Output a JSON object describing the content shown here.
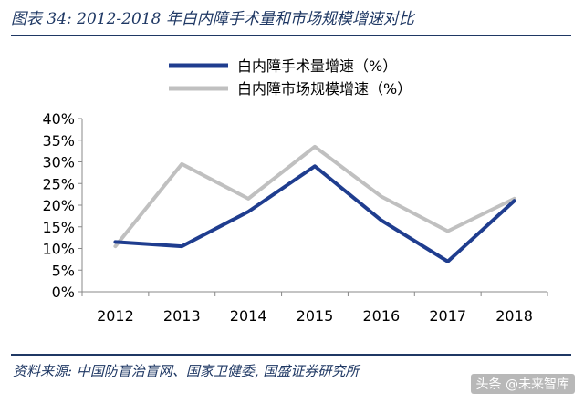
{
  "header": {
    "title": "图表 34:  2012-2018 年白内障手术量和市场规模增速对比"
  },
  "footer": {
    "source": "资料来源:  中国防盲治盲网、国家卫健委,  国盛证券研究所",
    "watermark": "头条 @未来智库"
  },
  "chart_data": {
    "type": "line",
    "x": [
      "2012",
      "2013",
      "2014",
      "2015",
      "2016",
      "2017",
      "2018"
    ],
    "ylim": [
      0,
      40
    ],
    "yticks": [
      0,
      5,
      10,
      15,
      20,
      25,
      30,
      35,
      40
    ],
    "ytick_labels": [
      "0%",
      "5%",
      "10%",
      "15%",
      "20%",
      "25%",
      "30%",
      "35%",
      "40%"
    ],
    "grid": false,
    "legend_position": "top-left",
    "series": [
      {
        "name": "白内障手术量增速（%）",
        "color": "#1f3d8f",
        "values": [
          11.5,
          10.5,
          18.5,
          29,
          16.5,
          7,
          21
        ]
      },
      {
        "name": "白内障市场规模增速（%）",
        "color": "#c0c0c0",
        "values": [
          10.5,
          29.5,
          21.5,
          33.5,
          22,
          14,
          21.5
        ]
      }
    ]
  }
}
